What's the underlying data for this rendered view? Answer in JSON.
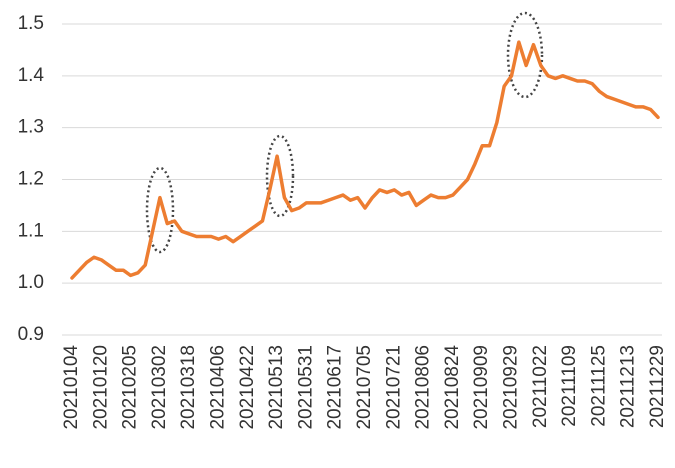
{
  "chart_data": {
    "type": "line",
    "categories": [
      "20210104",
      null,
      null,
      null,
      "20210120",
      null,
      null,
      null,
      "20210205",
      null,
      null,
      null,
      "20210302",
      null,
      null,
      null,
      "20210318",
      null,
      null,
      null,
      "20210406",
      null,
      null,
      null,
      "20210422",
      null,
      null,
      null,
      "20210513",
      null,
      null,
      null,
      "20210531",
      null,
      null,
      null,
      "20210617",
      null,
      null,
      null,
      "20210705",
      null,
      null,
      null,
      "20210721",
      null,
      null,
      null,
      "20210806",
      null,
      null,
      null,
      "20210824",
      null,
      null,
      null,
      "20210909",
      null,
      null,
      null,
      "20210929",
      null,
      null,
      null,
      "20211022",
      null,
      null,
      null,
      "20211109",
      null,
      null,
      null,
      "20211125",
      null,
      null,
      null,
      "20211213",
      null,
      null,
      null,
      "20211229"
    ],
    "values": [
      1.01,
      1.025,
      1.04,
      1.05,
      1.045,
      1.035,
      1.025,
      1.025,
      1.015,
      1.02,
      1.035,
      1.1,
      1.165,
      1.115,
      1.12,
      1.1,
      1.095,
      1.09,
      1.09,
      1.09,
      1.085,
      1.09,
      1.08,
      1.09,
      1.1,
      1.11,
      1.12,
      1.18,
      1.245,
      1.165,
      1.14,
      1.145,
      1.155,
      1.155,
      1.155,
      1.16,
      1.165,
      1.17,
      1.16,
      1.165,
      1.145,
      1.165,
      1.18,
      1.175,
      1.18,
      1.17,
      1.175,
      1.15,
      1.16,
      1.17,
      1.165,
      1.165,
      1.17,
      1.185,
      1.2,
      1.23,
      1.265,
      1.265,
      1.31,
      1.38,
      1.4,
      1.465,
      1.42,
      1.46,
      1.42,
      1.4,
      1.395,
      1.4,
      1.395,
      1.39,
      1.39,
      1.385,
      1.37,
      1.36,
      1.355,
      1.35,
      1.345,
      1.34,
      1.34,
      1.335,
      1.32
    ],
    "color": "#ed7d31",
    "ylim": [
      0.9,
      1.5
    ],
    "yticks": [
      0.9,
      {
        "value": 1,
        "label": "1.0"
      },
      1.1,
      1.2,
      1.3,
      1.4,
      1.5
    ],
    "grid": true
  }
}
